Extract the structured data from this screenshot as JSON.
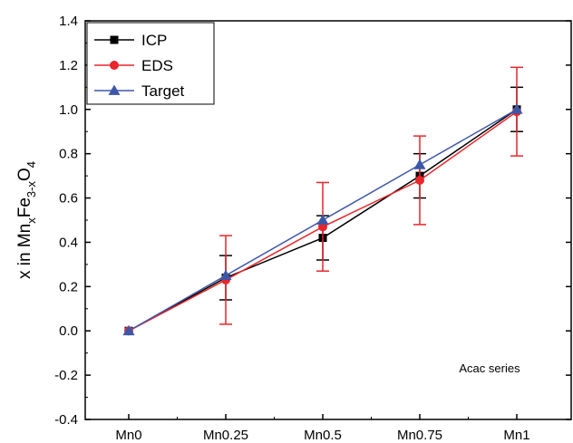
{
  "chart_data": {
    "type": "line",
    "categories": [
      "Mn0",
      "Mn0.25",
      "Mn0.5",
      "Mn0.75",
      "Mn1"
    ],
    "ylim": [
      -0.4,
      1.4
    ],
    "yticks": [
      "-0.4",
      "-0.2",
      "0.0",
      "0.2",
      "0.4",
      "0.6",
      "0.8",
      "1.0",
      "1.2",
      "1.4"
    ],
    "ylabel": {
      "prefix": "x in Mn",
      "sub1": "x",
      "mid": "Fe",
      "sub2": "3-x",
      "mid2": "O",
      "sub3": "4"
    },
    "annotation": "Acac series",
    "legend_position": "top-left",
    "grid": false,
    "series": [
      {
        "name": "ICP",
        "color": "#000000",
        "marker": "square",
        "values": [
          0.0,
          0.24,
          0.42,
          0.7,
          1.0
        ],
        "errors": [
          0.0,
          0.1,
          0.1,
          0.1,
          0.1
        ]
      },
      {
        "name": "EDS",
        "color": "#e8262b",
        "marker": "circle",
        "values": [
          0.0,
          0.23,
          0.47,
          0.68,
          0.99
        ],
        "errors": [
          0.0,
          0.2,
          0.2,
          0.2,
          0.2
        ]
      },
      {
        "name": "Target",
        "color": "#3d57a8",
        "marker": "triangle",
        "values": [
          0.0,
          0.25,
          0.5,
          0.75,
          1.0
        ],
        "errors": null
      }
    ]
  }
}
